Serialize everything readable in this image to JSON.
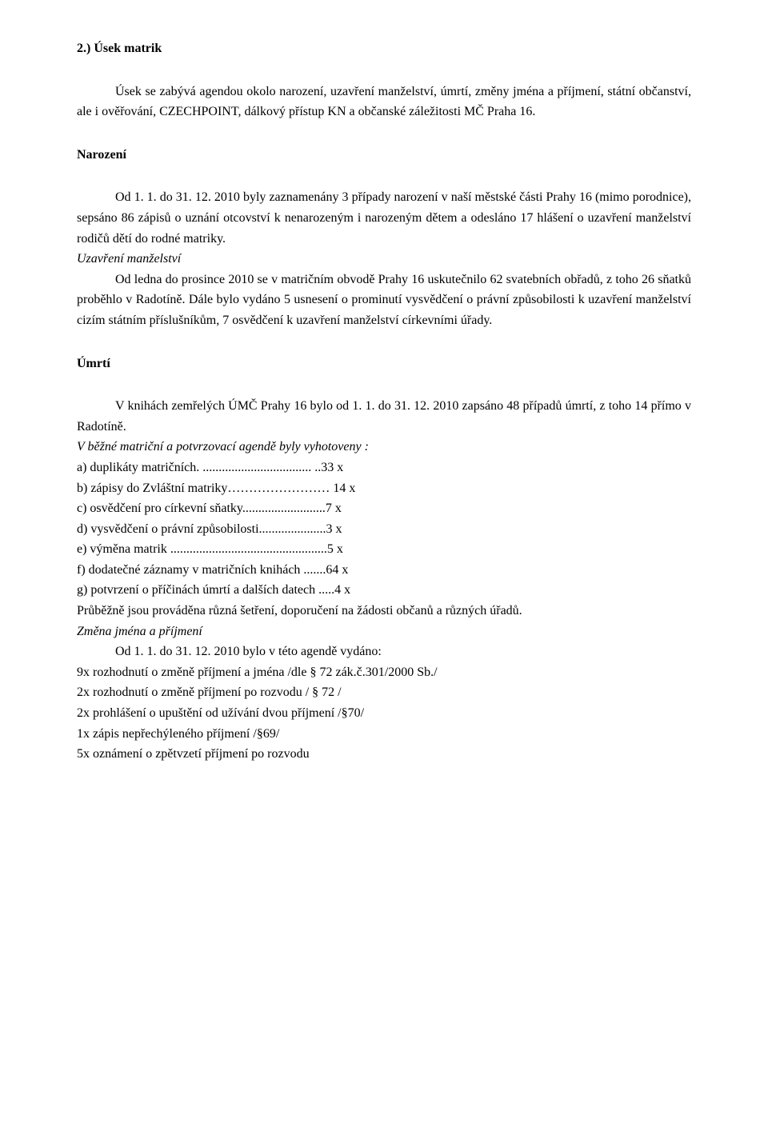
{
  "section_heading": "2.) Úsek matrik",
  "intro": "Úsek se zabývá agendou okolo narození, uzavření manželství, úmrtí, změny jména a příjmení, státní občanství, ale i ověřování, CZECHPOINT, dálkový přístup KN a občanské záležitosti MČ Praha 16.",
  "birth_heading": "Narození",
  "birth_para1_first": "Od 1. 1. do 31. 12. 2010 byly zaznamenány 3 případy narození v naší městské části Prahy 16 (mimo porodnice), sepsáno 86 zápisů o uznání otcovství k nenarozeným i narozeným dětem a odesláno 17 hlášení o uzavření manželství rodičů dětí do rodné matriky.",
  "birth_sub_italic": "Uzavření manželství",
  "birth_para2_first": "Od ledna do prosince 2010 se v matričním obvodě Prahy 16 uskutečnilo 62 svatebních obřadů, z toho 26 sňatků proběhlo v Radotíně. Dále bylo vydáno 5 usnesení o prominutí vysvědčení o právní způsobilosti k uzavření manželství cizím státním příslušníkům, 7 osvědčení k uzavření manželství církevními úřady.",
  "death_heading": "Úmrtí",
  "death_para_first": "V knihách zemřelých ÚMČ Prahy 16 bylo od 1. 1. do 31. 12. 2010 zapsáno 48 případů úmrtí, z toho 14 přímo v Radotíně.",
  "agenda_line_italic": "V běžné matriční a potvrzovací agendě byly vyhotoveny :",
  "list_a": "a) duplikáty matričních. .................................. ..33 x",
  "list_b": "b) zápisy do Zvláštní matriky…………………… 14 x",
  "list_c": "c) osvědčení pro církevní sňatky..........................7 x",
  "list_d": "d) vysvědčení o právní způsobilosti.....................3 x",
  "list_e": "e) výměna matrik .................................................5 x",
  "list_f": "f) dodatečné záznamy v matričních knihách .......64 x",
  "list_g": "g) potvrzení o příčinách úmrtí a dalších datech .....4 x",
  "avg_line": "Průběžně jsou prováděna různá šetření, doporučení na žádosti občanů a různých úřadů.",
  "change_heading_italic": "Změna jména a příjmení",
  "change_line1": "Od 1. 1. do 31. 12. 2010 bylo v této agendě vydáno:",
  "change_9x": "9x rozhodnutí o změně příjmení a jména /dle § 72 zák.č.301/2000 Sb./",
  "change_2x_a": "2x rozhodnutí o změně příjmení po rozvodu / § 72 /",
  "change_2x_b": "2x prohlášení o upuštění od užívání dvou příjmení /§70/",
  "change_1x": "1x zápis nepřechýleného příjmení /§69/",
  "change_5x": "5x oznámení o zpětvzetí příjmení po rozvodu"
}
